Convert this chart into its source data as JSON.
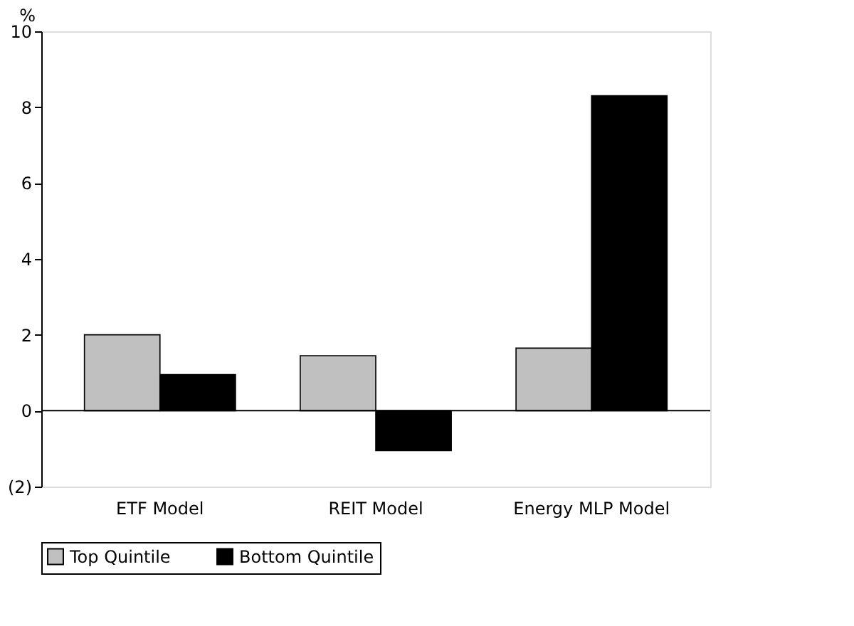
{
  "chart_data": {
    "type": "bar",
    "ylabel": "%",
    "categories": [
      "ETF Model",
      "REIT Model",
      "Energy MLP Model"
    ],
    "series": [
      {
        "name": "Top Quintile",
        "color": "#c0c0c0",
        "values": [
          2.0,
          1.45,
          1.65
        ]
      },
      {
        "name": "Bottom Quintile",
        "color": "#000000",
        "values": [
          0.95,
          -1.05,
          8.3
        ]
      }
    ],
    "ylim": [
      -2,
      10
    ],
    "yticks": [
      {
        "value": -2,
        "label": "(2)"
      },
      0,
      2,
      4,
      6,
      8,
      10
    ],
    "ref_lines": [
      {
        "axis": "y",
        "value": 0,
        "color": "#000000"
      }
    ],
    "grid": false,
    "legend": "bottom"
  }
}
